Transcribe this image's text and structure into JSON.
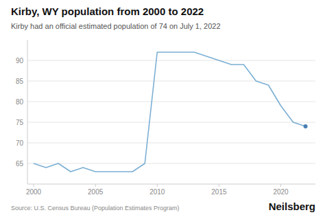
{
  "chart_data": {
    "type": "line",
    "title": "Kirby, WY population from 2000 to 2022",
    "subtitle": "Kirby had an official estimated population of 74 on July 1, 2022",
    "annotations": [
      "Source: U.S. Census Bureau (Population Estimates Program)",
      "Neilsberg"
    ],
    "x": [
      2000,
      2001,
      2002,
      2003,
      2004,
      2005,
      2006,
      2007,
      2008,
      2009,
      2010,
      2011,
      2012,
      2013,
      2014,
      2015,
      2016,
      2017,
      2018,
      2019,
      2020,
      2021,
      2022
    ],
    "series": [
      {
        "color": "#7bafd4",
        "type": "line",
        "values": [
          65,
          64,
          65,
          63,
          64,
          63,
          63,
          63,
          63,
          65,
          92,
          92,
          92,
          92,
          91,
          90,
          89,
          89,
          85,
          84,
          79,
          75,
          74
        ]
      },
      {
        "color": "#4a7fb5",
        "type": "scatter",
        "marker": "circle",
        "values": [
          null,
          null,
          null,
          null,
          null,
          null,
          null,
          null,
          null,
          null,
          null,
          null,
          null,
          null,
          null,
          null,
          null,
          null,
          null,
          null,
          null,
          null,
          74
        ]
      }
    ],
    "xlim": [
      1999.5,
      2022.8
    ],
    "ylim": [
      60,
      95
    ],
    "xticks": [
      2000,
      2005,
      2010,
      2015,
      2020
    ],
    "yticks": [
      65,
      70,
      75,
      80,
      85,
      90
    ],
    "grid": true
  }
}
